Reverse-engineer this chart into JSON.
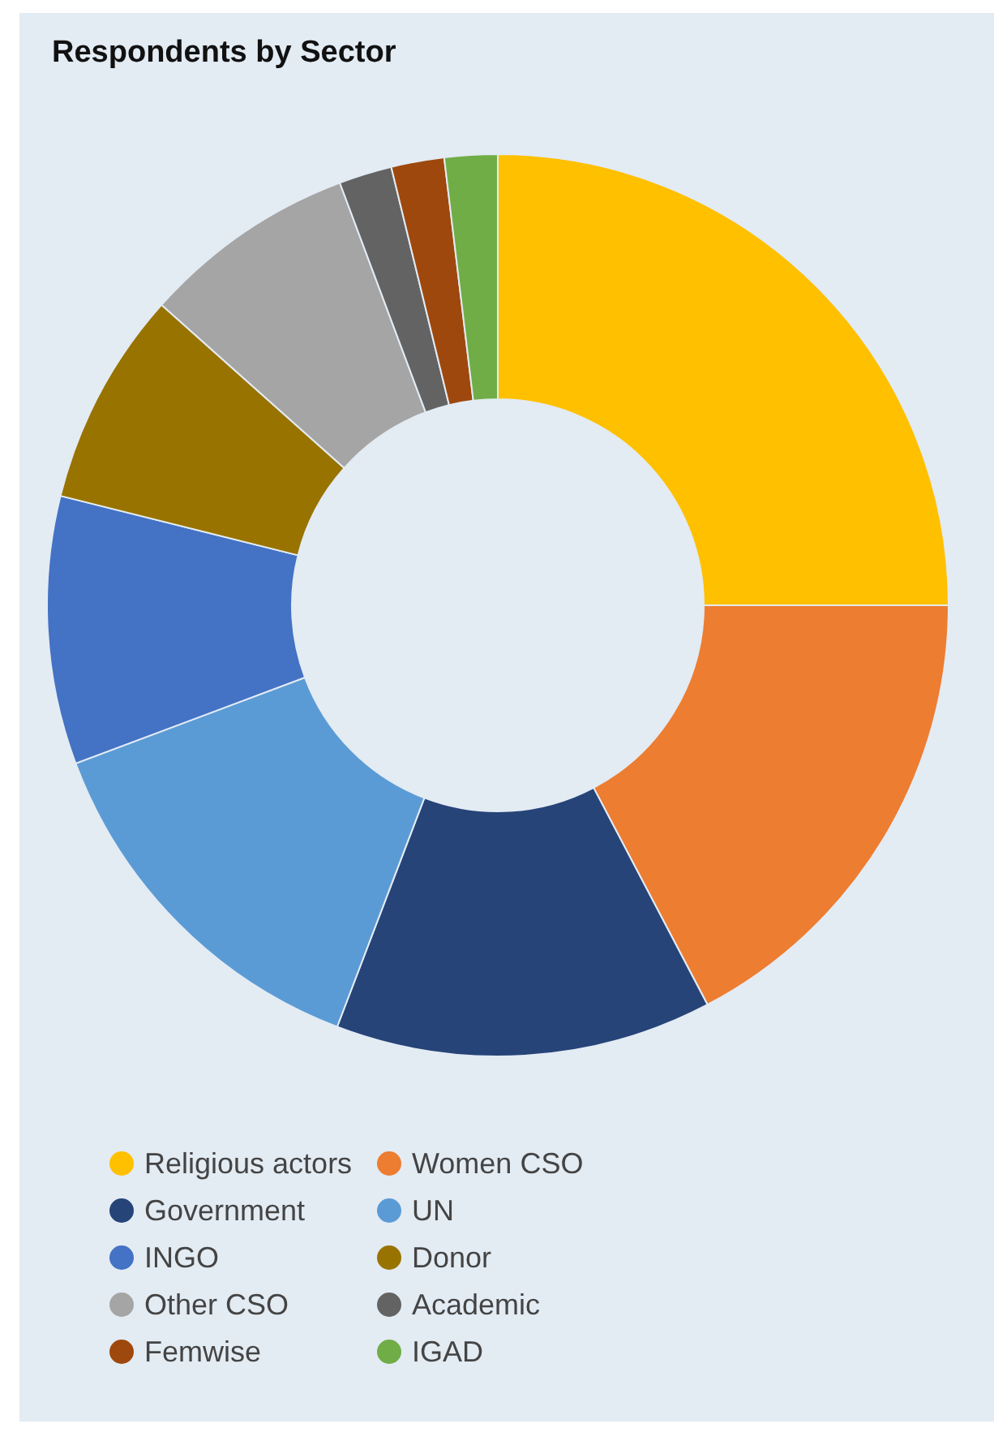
{
  "chart_data": {
    "type": "donut",
    "title": "Respondents by Sector",
    "categories": [
      "Religious actors",
      "Women CSO",
      "Government",
      "UN",
      "INGO",
      "Donor",
      "Other CSO",
      "Academic",
      "Femwise",
      "IGAD"
    ],
    "values": [
      25,
      17.3,
      13.5,
      13.5,
      9.6,
      7.7,
      7.7,
      1.9,
      1.9,
      1.9
    ],
    "colors": [
      "#ffc000",
      "#ed7d31",
      "#264478",
      "#5b9bd5",
      "#4472c4",
      "#997300",
      "#a5a5a5",
      "#636363",
      "#9e480e",
      "#70ad47"
    ],
    "legend": "bottom"
  }
}
